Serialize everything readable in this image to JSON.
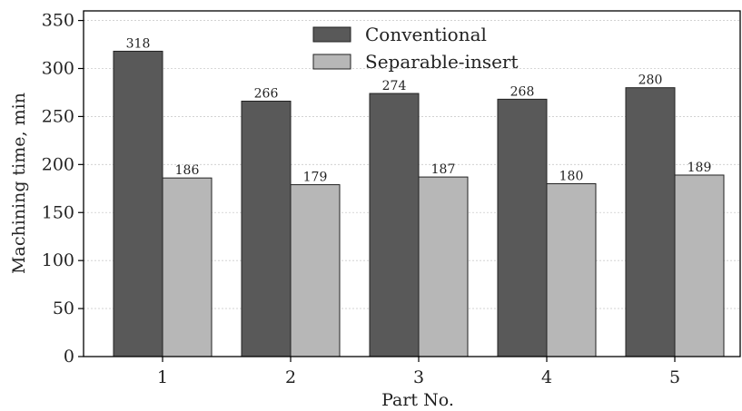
{
  "chart_data": {
    "type": "bar",
    "categories": [
      "1",
      "2",
      "3",
      "4",
      "5"
    ],
    "series": [
      {
        "name": "Conventional",
        "values": [
          318,
          266,
          274,
          268,
          280
        ],
        "color": "#595959"
      },
      {
        "name": "Separable-insert",
        "values": [
          186,
          179,
          187,
          180,
          189
        ],
        "color": "#b7b7b7"
      }
    ],
    "xlabel": "Part No.",
    "ylabel": "Machining time, min",
    "ylim": [
      0,
      360
    ],
    "yticks": [
      0,
      50,
      100,
      150,
      200,
      250,
      300,
      350
    ],
    "grid": true,
    "legend_position": "top-center"
  }
}
